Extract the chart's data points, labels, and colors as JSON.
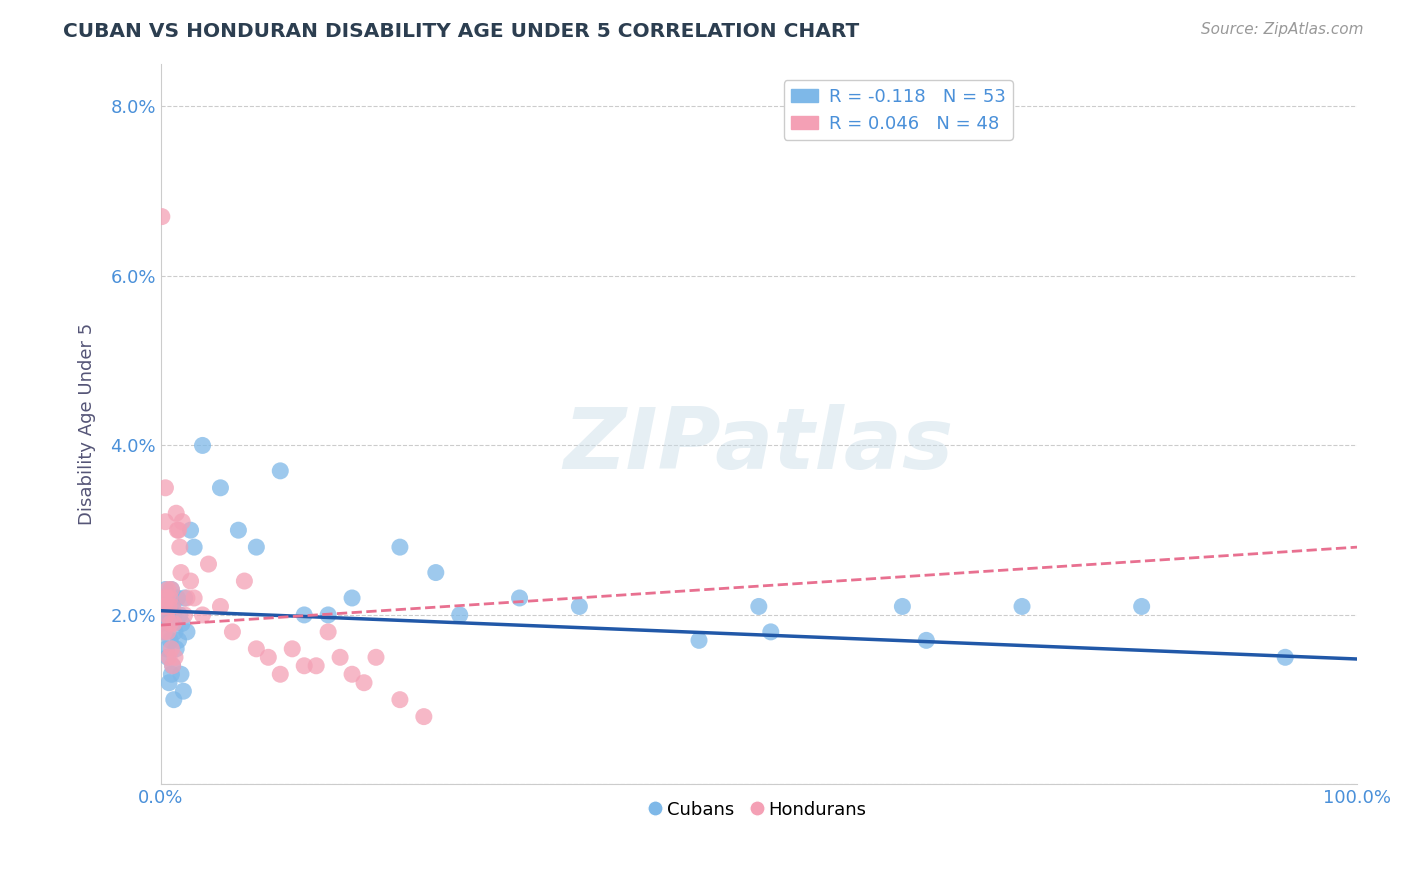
{
  "title": "CUBAN VS HONDURAN DISABILITY AGE UNDER 5 CORRELATION CHART",
  "source": "Source: ZipAtlas.com",
  "ylabel": "Disability Age Under 5",
  "xlim": [
    0.0,
    1.0
  ],
  "ylim": [
    0.0,
    0.085
  ],
  "x_ticks": [
    0.0,
    0.1,
    0.2,
    0.3,
    0.4,
    0.5,
    0.6,
    0.7,
    0.8,
    0.9,
    1.0
  ],
  "y_ticks": [
    0.0,
    0.02,
    0.04,
    0.06,
    0.08
  ],
  "cuban_color": "#7eb8e8",
  "honduran_color": "#f4a0b5",
  "cuban_line_color": "#2158a8",
  "honduran_line_color": "#e87090",
  "legend_cuban_label": "R = -0.118   N = 53",
  "legend_honduran_label": "R = 0.046   N = 48",
  "cuban_line_x0": 0.0,
  "cuban_line_y0": 0.0205,
  "cuban_line_x1": 1.0,
  "cuban_line_y1": 0.0148,
  "honduran_line_x0": 0.0,
  "honduran_line_y0": 0.0188,
  "honduran_line_x1": 1.0,
  "honduran_line_y1": 0.028,
  "background_color": "#ffffff",
  "grid_color": "#cccccc",
  "title_color": "#2c3e50",
  "axis_label_color": "#555577",
  "tick_color": "#4a90d9",
  "watermark_text": "ZIPatlas",
  "cuban_scatter_x": [
    0.001,
    0.002,
    0.003,
    0.003,
    0.004,
    0.004,
    0.005,
    0.005,
    0.006,
    0.006,
    0.007,
    0.007,
    0.008,
    0.008,
    0.009,
    0.009,
    0.01,
    0.01,
    0.011,
    0.011,
    0.012,
    0.013,
    0.014,
    0.015,
    0.016,
    0.017,
    0.018,
    0.019,
    0.02,
    0.022,
    0.025,
    0.028,
    0.035,
    0.05,
    0.065,
    0.08,
    0.1,
    0.12,
    0.14,
    0.16,
    0.2,
    0.23,
    0.25,
    0.3,
    0.35,
    0.45,
    0.5,
    0.51,
    0.62,
    0.64,
    0.72,
    0.82,
    0.94
  ],
  "cuban_scatter_y": [
    0.019,
    0.021,
    0.018,
    0.022,
    0.02,
    0.023,
    0.016,
    0.022,
    0.019,
    0.015,
    0.021,
    0.012,
    0.02,
    0.017,
    0.023,
    0.013,
    0.021,
    0.014,
    0.02,
    0.01,
    0.018,
    0.016,
    0.022,
    0.017,
    0.02,
    0.013,
    0.019,
    0.011,
    0.022,
    0.018,
    0.03,
    0.028,
    0.04,
    0.035,
    0.03,
    0.028,
    0.037,
    0.02,
    0.02,
    0.022,
    0.028,
    0.025,
    0.02,
    0.022,
    0.021,
    0.017,
    0.021,
    0.018,
    0.021,
    0.017,
    0.021,
    0.021,
    0.015
  ],
  "honduran_scatter_x": [
    0.001,
    0.002,
    0.003,
    0.003,
    0.004,
    0.004,
    0.005,
    0.005,
    0.006,
    0.006,
    0.007,
    0.007,
    0.008,
    0.008,
    0.009,
    0.009,
    0.01,
    0.01,
    0.011,
    0.012,
    0.013,
    0.014,
    0.015,
    0.016,
    0.017,
    0.018,
    0.02,
    0.022,
    0.025,
    0.028,
    0.035,
    0.04,
    0.05,
    0.06,
    0.07,
    0.08,
    0.09,
    0.1,
    0.11,
    0.12,
    0.13,
    0.14,
    0.15,
    0.16,
    0.17,
    0.18,
    0.2,
    0.22
  ],
  "honduran_scatter_y": [
    0.067,
    0.022,
    0.018,
    0.021,
    0.035,
    0.031,
    0.02,
    0.022,
    0.018,
    0.023,
    0.015,
    0.021,
    0.019,
    0.022,
    0.016,
    0.023,
    0.014,
    0.021,
    0.019,
    0.015,
    0.032,
    0.03,
    0.03,
    0.028,
    0.025,
    0.031,
    0.02,
    0.022,
    0.024,
    0.022,
    0.02,
    0.026,
    0.021,
    0.018,
    0.024,
    0.016,
    0.015,
    0.013,
    0.016,
    0.014,
    0.014,
    0.018,
    0.015,
    0.013,
    0.012,
    0.015,
    0.01,
    0.008
  ]
}
